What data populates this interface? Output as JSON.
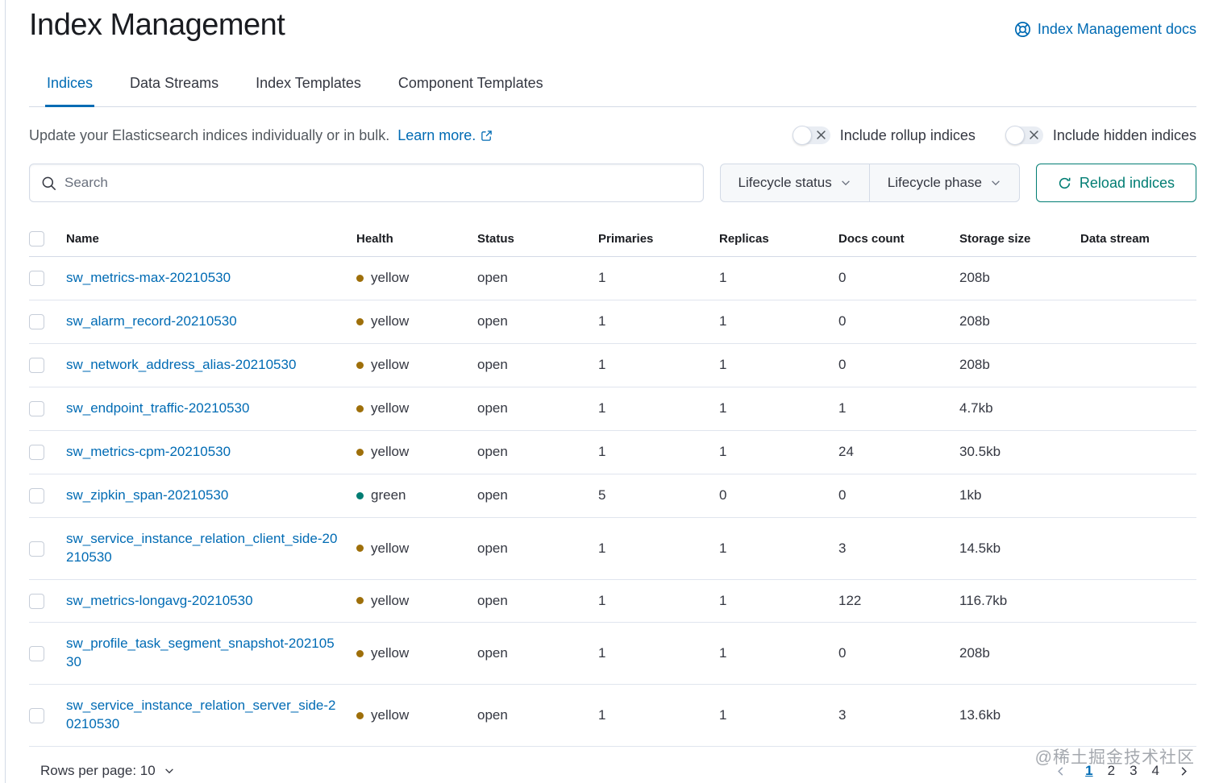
{
  "page": {
    "title": "Index Management",
    "docs_link_label": "Index Management docs"
  },
  "tabs": [
    {
      "label": "Indices",
      "active": true
    },
    {
      "label": "Data Streams",
      "active": false
    },
    {
      "label": "Index Templates",
      "active": false
    },
    {
      "label": "Component Templates",
      "active": false
    }
  ],
  "description": {
    "text": "Update your Elasticsearch indices individually or in bulk.",
    "link_label": "Learn more."
  },
  "toggles": [
    {
      "label": "Include rollup indices",
      "state": "off"
    },
    {
      "label": "Include hidden indices",
      "state": "off"
    }
  ],
  "controls": {
    "search_placeholder": "Search",
    "filters": [
      {
        "label": "Lifecycle status"
      },
      {
        "label": "Lifecycle phase"
      }
    ],
    "reload_label": "Reload indices"
  },
  "table": {
    "columns": [
      "Name",
      "Health",
      "Status",
      "Primaries",
      "Replicas",
      "Docs count",
      "Storage size",
      "Data stream"
    ],
    "rows": [
      {
        "name": "sw_metrics-max-20210530",
        "health": "yellow",
        "status": "open",
        "primaries": "1",
        "replicas": "1",
        "docs_count": "0",
        "storage_size": "208b",
        "data_stream": ""
      },
      {
        "name": "sw_alarm_record-20210530",
        "health": "yellow",
        "status": "open",
        "primaries": "1",
        "replicas": "1",
        "docs_count": "0",
        "storage_size": "208b",
        "data_stream": ""
      },
      {
        "name": "sw_network_address_alias-20210530",
        "health": "yellow",
        "status": "open",
        "primaries": "1",
        "replicas": "1",
        "docs_count": "0",
        "storage_size": "208b",
        "data_stream": ""
      },
      {
        "name": "sw_endpoint_traffic-20210530",
        "health": "yellow",
        "status": "open",
        "primaries": "1",
        "replicas": "1",
        "docs_count": "1",
        "storage_size": "4.7kb",
        "data_stream": ""
      },
      {
        "name": "sw_metrics-cpm-20210530",
        "health": "yellow",
        "status": "open",
        "primaries": "1",
        "replicas": "1",
        "docs_count": "24",
        "storage_size": "30.5kb",
        "data_stream": ""
      },
      {
        "name": "sw_zipkin_span-20210530",
        "health": "green",
        "status": "open",
        "primaries": "5",
        "replicas": "0",
        "docs_count": "0",
        "storage_size": "1kb",
        "data_stream": ""
      },
      {
        "name": "sw_service_instance_relation_client_side-20210530",
        "health": "yellow",
        "status": "open",
        "primaries": "1",
        "replicas": "1",
        "docs_count": "3",
        "storage_size": "14.5kb",
        "data_stream": ""
      },
      {
        "name": "sw_metrics-longavg-20210530",
        "health": "yellow",
        "status": "open",
        "primaries": "1",
        "replicas": "1",
        "docs_count": "122",
        "storage_size": "116.7kb",
        "data_stream": ""
      },
      {
        "name": "sw_profile_task_segment_snapshot-20210530",
        "health": "yellow",
        "status": "open",
        "primaries": "1",
        "replicas": "1",
        "docs_count": "0",
        "storage_size": "208b",
        "data_stream": ""
      },
      {
        "name": "sw_service_instance_relation_server_side-20210530",
        "health": "yellow",
        "status": "open",
        "primaries": "1",
        "replicas": "1",
        "docs_count": "3",
        "storage_size": "13.6kb",
        "data_stream": ""
      }
    ]
  },
  "pagination": {
    "rows_per_page_label": "Rows per page: 10",
    "pages": [
      "1",
      "2",
      "3",
      "4"
    ],
    "active_page": "1"
  },
  "watermark": "@稀土掘金技术社区",
  "colors": {
    "link": "#006bb4",
    "accent_teal": "#017d73",
    "health": {
      "yellow": "#9e6f0a",
      "green": "#017d73"
    }
  }
}
